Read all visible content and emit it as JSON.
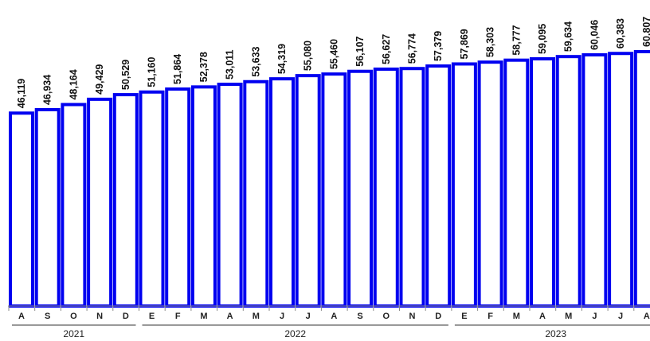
{
  "chart_data": {
    "type": "bar",
    "categories": [
      "A",
      "S",
      "O",
      "N",
      "D",
      "E",
      "F",
      "M",
      "A",
      "M",
      "J",
      "J",
      "A",
      "S",
      "O",
      "N",
      "D",
      "E",
      "F",
      "M",
      "A",
      "M",
      "J",
      "J",
      "A"
    ],
    "values": [
      46119,
      46934,
      48164,
      49429,
      50529,
      51160,
      51864,
      52378,
      53011,
      53633,
      54319,
      55080,
      55460,
      56107,
      56627,
      56774,
      57379,
      57869,
      58303,
      58777,
      59095,
      59634,
      60046,
      60383,
      60807
    ],
    "value_labels": [
      "46,119",
      "46,934",
      "48,164",
      "49,429",
      "50,529",
      "51,160",
      "51,864",
      "52,378",
      "53,011",
      "53,633",
      "54,319",
      "55,080",
      "55,460",
      "56,107",
      "56,627",
      "56,774",
      "57,379",
      "57,869",
      "58,303",
      "58,777",
      "59,095",
      "59,634",
      "60,046",
      "60,383",
      "60,807"
    ],
    "year_groups": [
      {
        "label": "2021",
        "start": 0,
        "count": 5
      },
      {
        "label": "2022",
        "start": 5,
        "count": 12
      },
      {
        "label": "2023",
        "start": 17,
        "count": 8
      }
    ],
    "ylim": [
      0,
      60807
    ],
    "bar_fill": "#ffffff",
    "bar_stroke": "#0000f0",
    "grid": false,
    "title": "",
    "xlabel": "",
    "ylabel": ""
  }
}
